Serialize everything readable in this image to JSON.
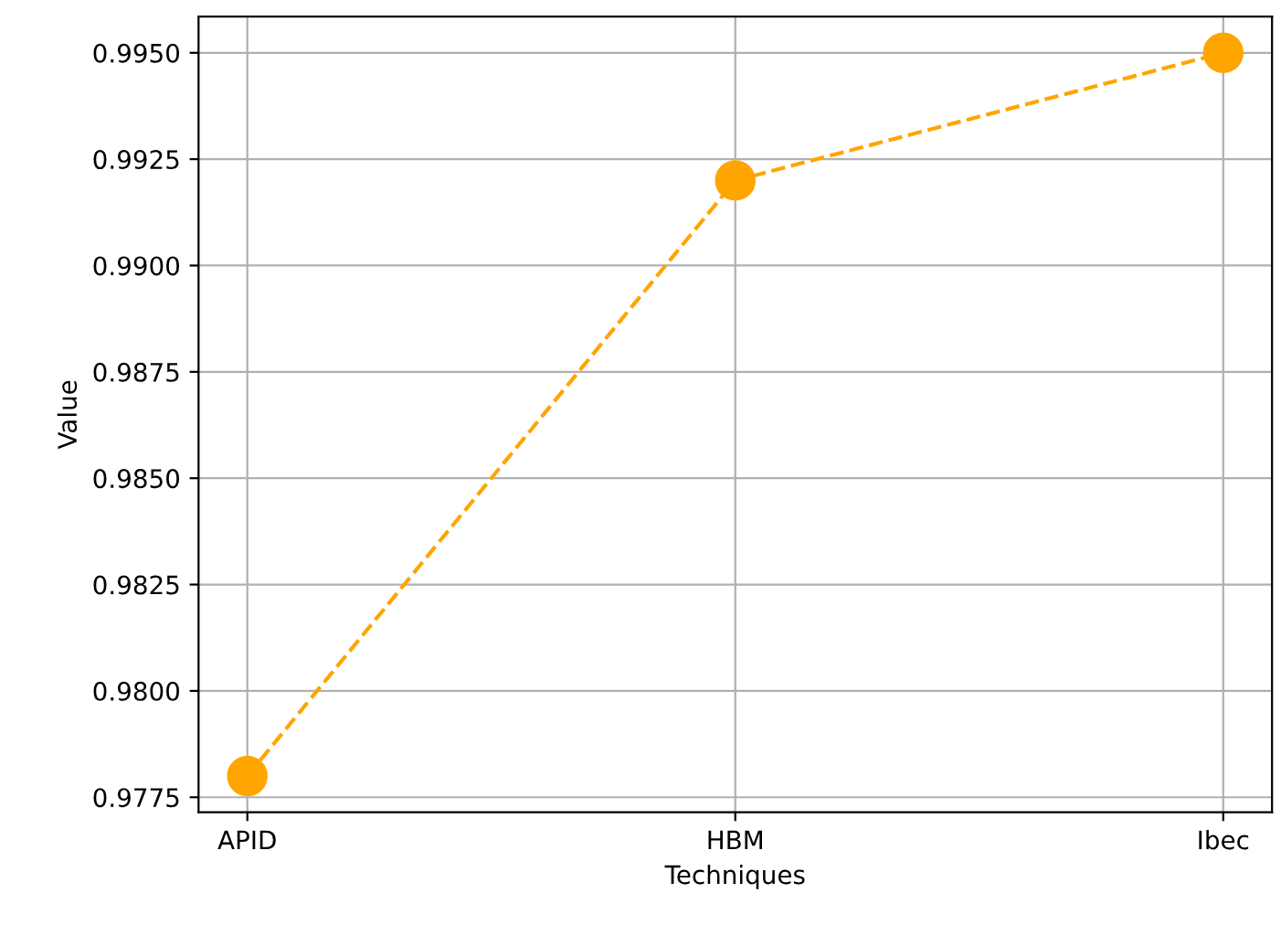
{
  "chart_data": {
    "type": "line",
    "xlabel": "Techniques",
    "ylabel": "Value",
    "categories": [
      "APID",
      "HBM",
      "Ibec"
    ],
    "series": [
      {
        "color": "#ffa500",
        "values": [
          0.978,
          0.992,
          0.995
        ]
      }
    ],
    "ylim": [
      0.97715,
      0.99585
    ],
    "yticks": [
      {
        "value": 0.9775,
        "label": "0.9775"
      },
      {
        "value": 0.98,
        "label": "0.9800"
      },
      {
        "value": 0.9825,
        "label": "0.9825"
      },
      {
        "value": 0.985,
        "label": "0.9850"
      },
      {
        "value": 0.9875,
        "label": "0.9875"
      },
      {
        "value": 0.99,
        "label": "0.9900"
      },
      {
        "value": 0.9925,
        "label": "0.9925"
      },
      {
        "value": 0.995,
        "label": "0.9950"
      }
    ],
    "grid": true,
    "marker": "circle",
    "line_style": "dashed",
    "legend": false
  }
}
